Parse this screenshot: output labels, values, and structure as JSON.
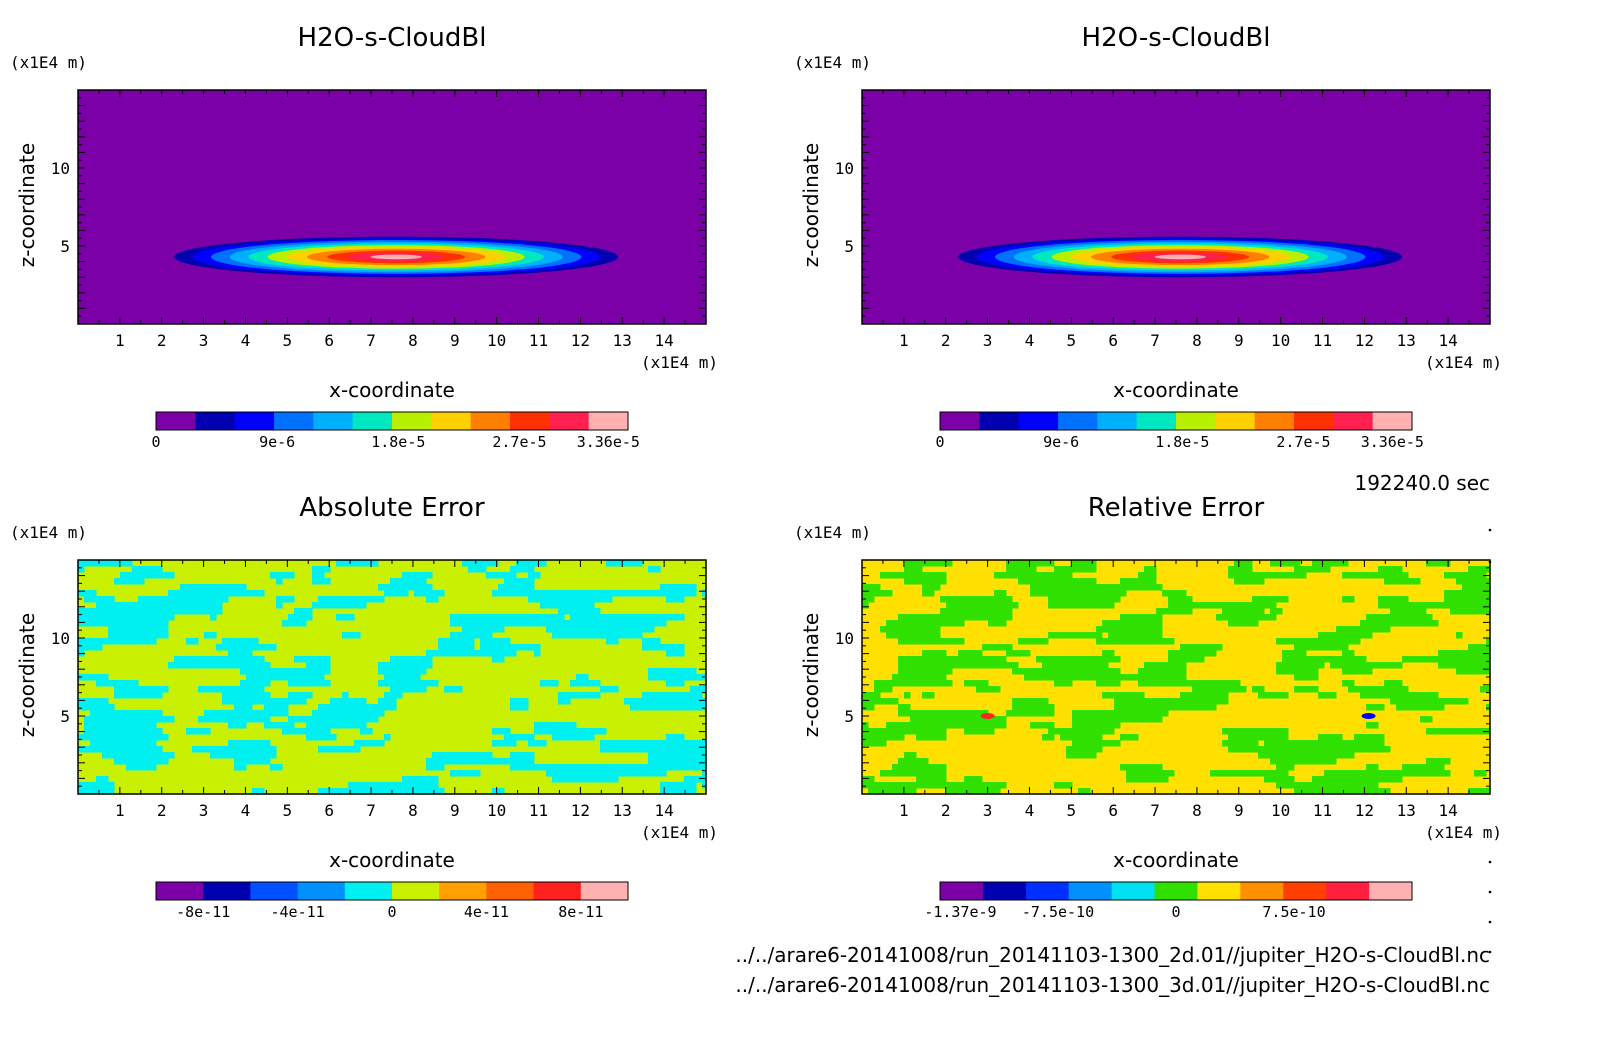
{
  "timestamp": "192240.0 sec",
  "files": [
    "../../arare6-20141008/run_20141103-1300_2d.01//jupiter_H2O-s-CloudBl.nc",
    "../../arare6-20141008/run_20141103-1300_3d.01//jupiter_H2O-s-CloudBl.nc"
  ],
  "chart_data": [
    {
      "type": "heatmap",
      "title": "H2O-s-CloudBl",
      "xlabel": "x-coordinate",
      "ylabel": "z-coordinate",
      "x_unit": "(x1E4 m)",
      "y_unit": "(x1E4 m)",
      "xlim": [
        0,
        15
      ],
      "ylim": [
        0,
        15
      ],
      "x_ticks": [
        1,
        2,
        3,
        4,
        5,
        6,
        7,
        8,
        9,
        10,
        11,
        12,
        13,
        14
      ],
      "y_ticks": [
        5,
        10
      ],
      "pattern": "cloud",
      "field": {
        "center_x": 7.6,
        "center_z": 4.3,
        "half_width_x": 5.3,
        "top_z": 5.6,
        "bottom_z": 3.0,
        "peak": 3.36e-05
      },
      "colorbar": {
        "colors": [
          "#7b00a8",
          "#0000b0",
          "#0000ff",
          "#0070ff",
          "#00b0ff",
          "#00e8c0",
          "#b8f000",
          "#ffd000",
          "#ff8000",
          "#ff3000",
          "#ff2050",
          "#ffb0b0"
        ],
        "tick_labels": [
          "0",
          "9e-6",
          "1.8e-5",
          "2.7e-5",
          "3.36e-5"
        ],
        "tick_values": [
          0,
          9e-06,
          1.8e-05,
          2.7e-05,
          3.36e-05
        ],
        "range": [
          0,
          3.36e-05
        ]
      }
    },
    {
      "type": "heatmap",
      "title": "H2O-s-CloudBl",
      "xlabel": "x-coordinate",
      "ylabel": "z-coordinate",
      "x_unit": "(x1E4 m)",
      "y_unit": "(x1E4 m)",
      "xlim": [
        0,
        15
      ],
      "ylim": [
        0,
        15
      ],
      "x_ticks": [
        1,
        2,
        3,
        4,
        5,
        6,
        7,
        8,
        9,
        10,
        11,
        12,
        13,
        14
      ],
      "y_ticks": [
        5,
        10
      ],
      "pattern": "cloud",
      "field": {
        "center_x": 7.6,
        "center_z": 4.3,
        "half_width_x": 5.3,
        "top_z": 5.6,
        "bottom_z": 3.0,
        "peak": 3.36e-05
      },
      "colorbar": {
        "colors": [
          "#7b00a8",
          "#0000b0",
          "#0000ff",
          "#0070ff",
          "#00b0ff",
          "#00e8c0",
          "#b8f000",
          "#ffd000",
          "#ff8000",
          "#ff3000",
          "#ff2050",
          "#ffb0b0"
        ],
        "tick_labels": [
          "0",
          "9e-6",
          "1.8e-5",
          "2.7e-5",
          "3.36e-5"
        ],
        "tick_values": [
          0,
          9e-06,
          1.8e-05,
          2.7e-05,
          3.36e-05
        ],
        "range": [
          0,
          3.36e-05
        ]
      }
    },
    {
      "type": "heatmap",
      "title": "Absolute Error",
      "xlabel": "x-coordinate",
      "ylabel": "z-coordinate",
      "x_unit": "(x1E4 m)",
      "y_unit": "(x1E4 m)",
      "xlim": [
        0,
        15
      ],
      "ylim": [
        0,
        15
      ],
      "x_ticks": [
        1,
        2,
        3,
        4,
        5,
        6,
        7,
        8,
        9,
        10,
        11,
        12,
        13,
        14
      ],
      "y_ticks": [
        5,
        10
      ],
      "pattern": "noise",
      "noise_colors": [
        "#00f0f0",
        "#c8f000"
      ],
      "colorbar": {
        "colors": [
          "#7b00a8",
          "#0000b0",
          "#0050ff",
          "#0090ff",
          "#00f0f0",
          "#c8f000",
          "#ffa000",
          "#ff6000",
          "#ff2020",
          "#ffb0b0"
        ],
        "tick_labels": [
          "-8e-11",
          "-4e-11",
          "0",
          "4e-11",
          "8e-11"
        ],
        "tick_values": [
          -8e-11,
          -4e-11,
          0,
          4e-11,
          8e-11
        ],
        "range": [
          -1e-10,
          1e-10
        ]
      }
    },
    {
      "type": "heatmap",
      "title": "Relative Error",
      "xlabel": "x-coordinate",
      "ylabel": "z-coordinate",
      "x_unit": "(x1E4 m)",
      "y_unit": "(x1E4 m)",
      "xlim": [
        0,
        15
      ],
      "ylim": [
        0,
        15
      ],
      "x_ticks": [
        1,
        2,
        3,
        4,
        5,
        6,
        7,
        8,
        9,
        10,
        11,
        12,
        13,
        14
      ],
      "y_ticks": [
        5,
        10
      ],
      "pattern": "noise",
      "noise_colors": [
        "#30e000",
        "#ffe000"
      ],
      "spots": [
        {
          "x": 3.0,
          "z": 5.0,
          "color": "#ff2020"
        },
        {
          "x": 12.1,
          "z": 5.0,
          "color": "#0000ff"
        }
      ],
      "colorbar": {
        "colors": [
          "#7b00a8",
          "#0000b0",
          "#0030ff",
          "#0090ff",
          "#00e0f0",
          "#30e000",
          "#ffe000",
          "#ff9000",
          "#ff4000",
          "#ff2040",
          "#ffb0b0"
        ],
        "tick_labels": [
          "-1.37e-9",
          "-7.5e-10",
          "0",
          "7.5e-10"
        ],
        "tick_values": [
          -1.37e-09,
          -7.5e-10,
          0,
          7.5e-10
        ],
        "range": [
          -1.5e-09,
          1.5e-09
        ]
      }
    }
  ]
}
